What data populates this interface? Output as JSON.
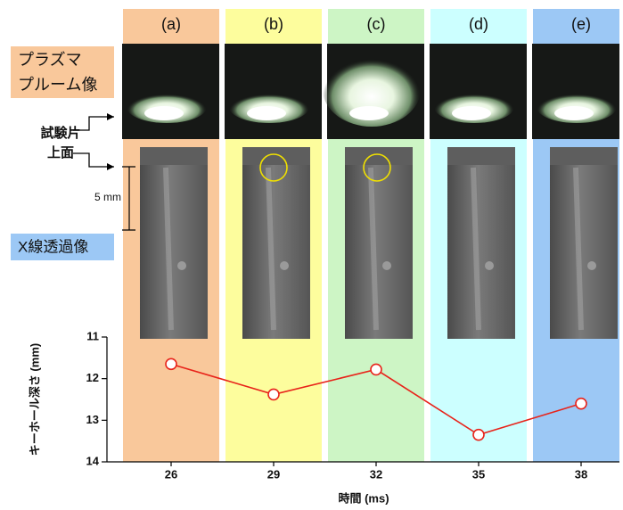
{
  "chart_data": {
    "type": "line",
    "panel_labels": [
      "(a)",
      "(b)",
      "(c)",
      "(d)",
      "(e)"
    ],
    "band_colors": [
      "#f9c89b",
      "#fdfd9d",
      "#cdf5c5",
      "#ccffff",
      "#9cc8f5"
    ],
    "categories": [
      "26",
      "29",
      "32",
      "35",
      "38"
    ],
    "values": [
      11.65,
      12.38,
      11.78,
      13.35,
      12.6
    ],
    "color": "#e8231a",
    "ylim": [
      11,
      14
    ],
    "yticks": [
      11,
      12,
      13,
      14
    ],
    "y_reversed": true,
    "x_label": "時間 (ms)",
    "y_label": "キーホール深さ (mm)"
  },
  "plasma_label": [
    "プラズマ",
    "プルーム像"
  ],
  "surface_label": [
    "試験片",
    "上面"
  ],
  "scale_label": "5 mm",
  "xray_label": "X線透過像"
}
